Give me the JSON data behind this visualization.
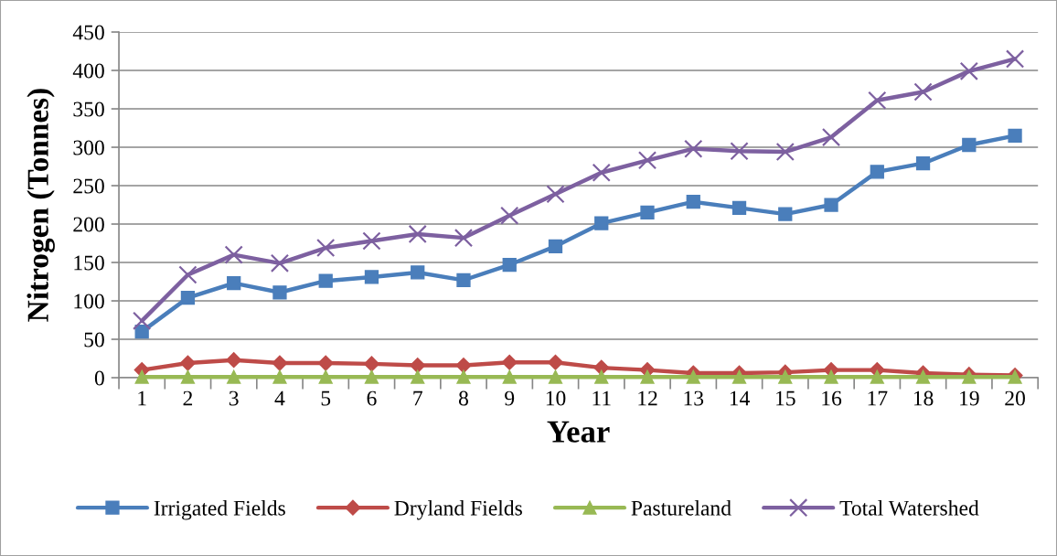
{
  "chart_data": {
    "type": "line",
    "xlabel": "Year",
    "ylabel": "Nitrogen (Tonnes)",
    "categories": [
      "1",
      "2",
      "3",
      "4",
      "5",
      "6",
      "7",
      "8",
      "9",
      "10",
      "11",
      "12",
      "13",
      "14",
      "15",
      "16",
      "17",
      "18",
      "19",
      "20"
    ],
    "series": [
      {
        "name": "Irrigated Fields",
        "color": "#4a7ebb",
        "marker": "square",
        "values": [
          60,
          104,
          123,
          111,
          126,
          131,
          137,
          127,
          147,
          171,
          201,
          215,
          229,
          221,
          213,
          225,
          268,
          279,
          303,
          315
        ]
      },
      {
        "name": "Dryland Fields",
        "color": "#be4b48",
        "marker": "diamond",
        "values": [
          10,
          19,
          23,
          19,
          19,
          18,
          16,
          16,
          20,
          20,
          13,
          10,
          6,
          6,
          7,
          10,
          10,
          6,
          4,
          3
        ]
      },
      {
        "name": "Pastureland",
        "color": "#98b954",
        "marker": "triangle",
        "values": [
          1,
          1,
          1,
          1,
          1,
          1,
          1,
          1,
          1,
          1,
          1,
          1,
          1,
          1,
          1,
          1,
          1,
          1,
          1,
          1
        ]
      },
      {
        "name": "Total Watershed",
        "color": "#7d60a0",
        "marker": "cross",
        "values": [
          74,
          134,
          160,
          149,
          169,
          178,
          187,
          182,
          211,
          239,
          267,
          283,
          298,
          295,
          294,
          313,
          361,
          372,
          399,
          415
        ]
      }
    ],
    "ylim": [
      0,
      450
    ],
    "yticks": [
      0,
      50,
      100,
      150,
      200,
      250,
      300,
      350,
      400,
      450
    ],
    "grid": "y",
    "legend": "bottom",
    "line_style": "solid"
  }
}
